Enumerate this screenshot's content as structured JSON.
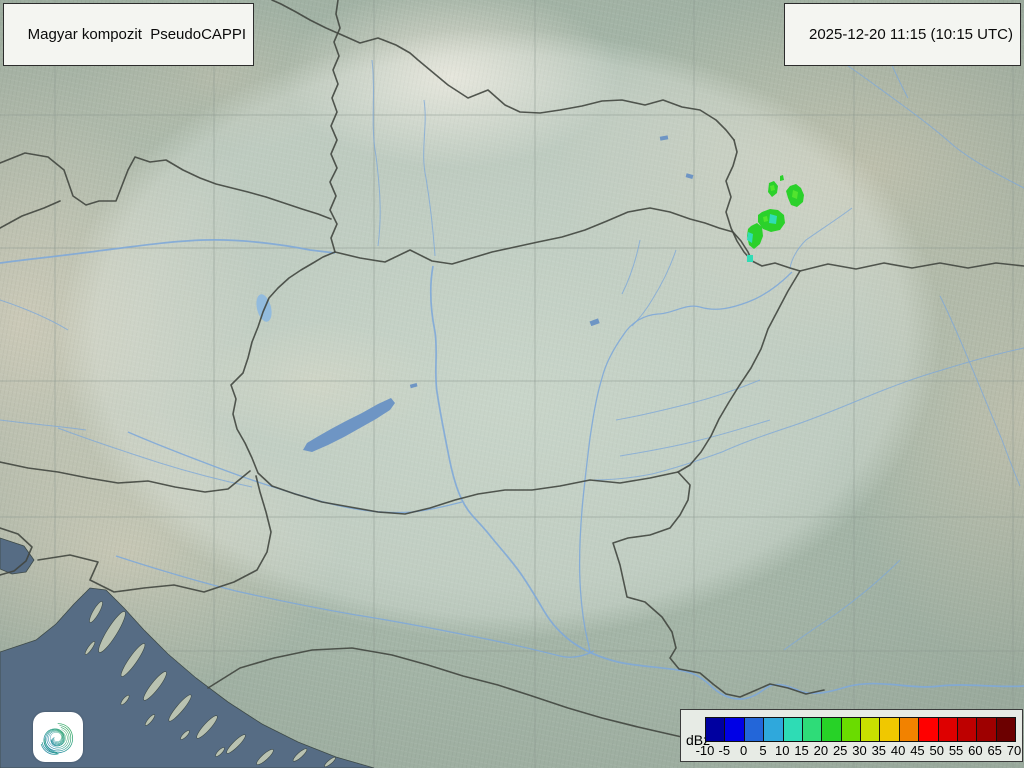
{
  "header": {
    "product_label": "Magyar kompozit  PseudoCAPPI",
    "timestamp_label": "2025-12-20 11:15 (10:15 UTC)"
  },
  "legend": {
    "unit": "dBz",
    "ticks": [
      "-10",
      "-5",
      "0",
      "5",
      "10",
      "15",
      "20",
      "25",
      "30",
      "35",
      "40",
      "45",
      "50",
      "55",
      "60",
      "65",
      "70"
    ],
    "colors": [
      "#0000A0",
      "#0000E6",
      "#2366D9",
      "#2FA8DC",
      "#2EDCB5",
      "#2EDC78",
      "#27D227",
      "#6ADC00",
      "#C8E000",
      "#F0C800",
      "#F28200",
      "#FF0000",
      "#DE0000",
      "#BE0000",
      "#9E0000",
      "#6C0000"
    ]
  },
  "branding": {
    "logo_icon": "hungaromet-spiral-logo"
  },
  "colors": {
    "sea": "#566C84",
    "lake": "#6E95C4",
    "lake_light": "#92BBDE",
    "river": "#7FA9D8",
    "border": "#41463F",
    "grid": "#8A968D",
    "echo_green": "#2BD12B",
    "echo_green_bright": "#52E42E",
    "echo_turquoise": "#31DCB4",
    "box_bg": "#F4F5F1",
    "legend_bg": "#E7EBE5"
  }
}
